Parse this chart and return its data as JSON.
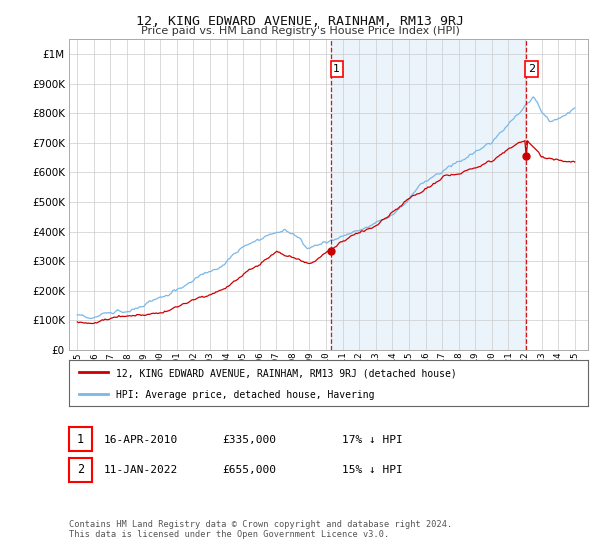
{
  "title": "12, KING EDWARD AVENUE, RAINHAM, RM13 9RJ",
  "subtitle": "Price paid vs. HM Land Registry's House Price Index (HPI)",
  "ytick_values": [
    0,
    100000,
    200000,
    300000,
    400000,
    500000,
    600000,
    700000,
    800000,
    900000,
    1000000
  ],
  "ylim": [
    0,
    1050000
  ],
  "hpi_color": "#7ab8e8",
  "hpi_fill_color": "#daeaf8",
  "price_color": "#cc0000",
  "marker1_year": 2010.29,
  "marker1_price": 335000,
  "marker2_year": 2022.04,
  "marker2_price": 655000,
  "legend_label1": "12, KING EDWARD AVENUE, RAINHAM, RM13 9RJ (detached house)",
  "legend_label2": "HPI: Average price, detached house, Havering",
  "annotation1_date": "16-APR-2010",
  "annotation1_price": "£335,000",
  "annotation1_pct": "17% ↓ HPI",
  "annotation2_date": "11-JAN-2022",
  "annotation2_price": "£655,000",
  "annotation2_pct": "15% ↓ HPI",
  "footer": "Contains HM Land Registry data © Crown copyright and database right 2024.\nThis data is licensed under the Open Government Licence v3.0.",
  "background_color": "#ffffff",
  "grid_color": "#cccccc"
}
